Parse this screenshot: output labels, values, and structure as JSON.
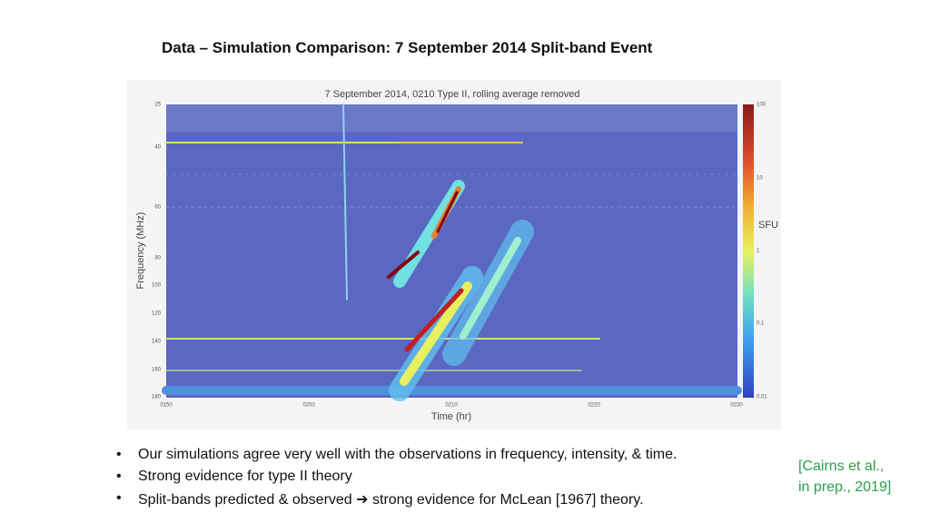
{
  "header": {
    "title": "Data – Simulation Comparison: 7 September 2014 Split-band Event"
  },
  "figure": {
    "title": "7 September 2014, 0210 Type II, rolling average removed",
    "y_label": "Frequency (MHz)",
    "x_label": "Time (hr)",
    "y_ticks": [
      "25",
      "40",
      "60",
      "80",
      "100",
      "120",
      "140",
      "160",
      "180"
    ],
    "x_ticks": [
      "0150",
      "0200",
      "0210",
      "0220",
      "0230"
    ],
    "colorbar_ticks": [
      "100",
      "10",
      "1",
      "0.1",
      "0.01"
    ],
    "colorbar_label": "SFU"
  },
  "bullets": [
    "Our simulations agree very well with the observations in frequency, intensity, & time.",
    "Strong evidence for type II theory",
    "Split-bands predicted & observed ➔ strong evidence for McLean [1967] theory."
  ],
  "citation": [
    "[Cairns et al.,",
    "in prep., 2019]"
  ]
}
